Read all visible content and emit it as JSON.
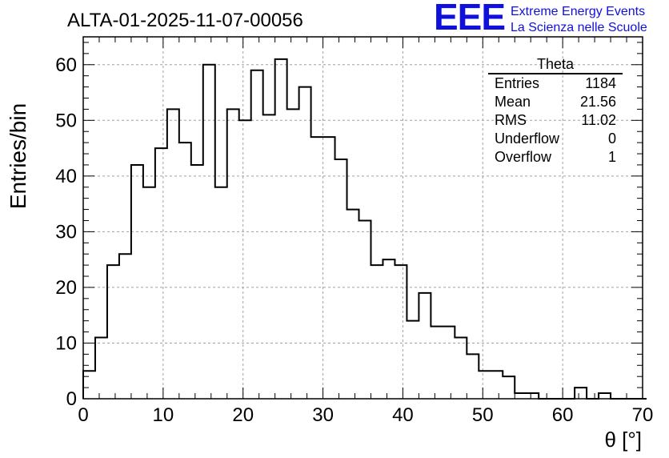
{
  "title": "ALTA-01-2025-11-07-00056",
  "logo": {
    "letters": "EEE",
    "line1": "Extreme Energy Events",
    "line2": "La Scienza nelle Scuole",
    "color": "#1010dd"
  },
  "stats": {
    "title": "Theta",
    "rows": [
      {
        "label": "Entries",
        "value": "1184"
      },
      {
        "label": "Mean",
        "value": "21.56"
      },
      {
        "label": "RMS",
        "value": "11.02"
      },
      {
        "label": "Underflow",
        "value": "0"
      },
      {
        "label": "Overflow",
        "value": "1"
      }
    ]
  },
  "chart_data": {
    "type": "histogram",
    "xlabel": "θ [°]",
    "ylabel": "Entries/bin",
    "xlim": [
      0,
      70
    ],
    "ylim": [
      0,
      65
    ],
    "bin_width": 1.5,
    "bin_start": 0,
    "values": [
      5,
      11,
      24,
      26,
      42,
      38,
      45,
      52,
      46,
      42,
      60,
      38,
      52,
      50,
      59,
      51,
      61,
      52,
      56,
      47,
      47,
      43,
      34,
      32,
      24,
      25,
      24,
      14,
      19,
      13,
      13,
      11,
      8,
      5,
      5,
      4,
      1,
      1,
      0,
      0,
      0,
      2,
      0,
      1,
      0,
      0,
      0
    ],
    "x_ticks": [
      0,
      10,
      20,
      30,
      40,
      50,
      60,
      70
    ],
    "y_ticks": [
      0,
      10,
      20,
      30,
      40,
      50,
      60
    ],
    "grid": true,
    "line_color": "#000000",
    "grid_color": "#a0a0a0"
  }
}
